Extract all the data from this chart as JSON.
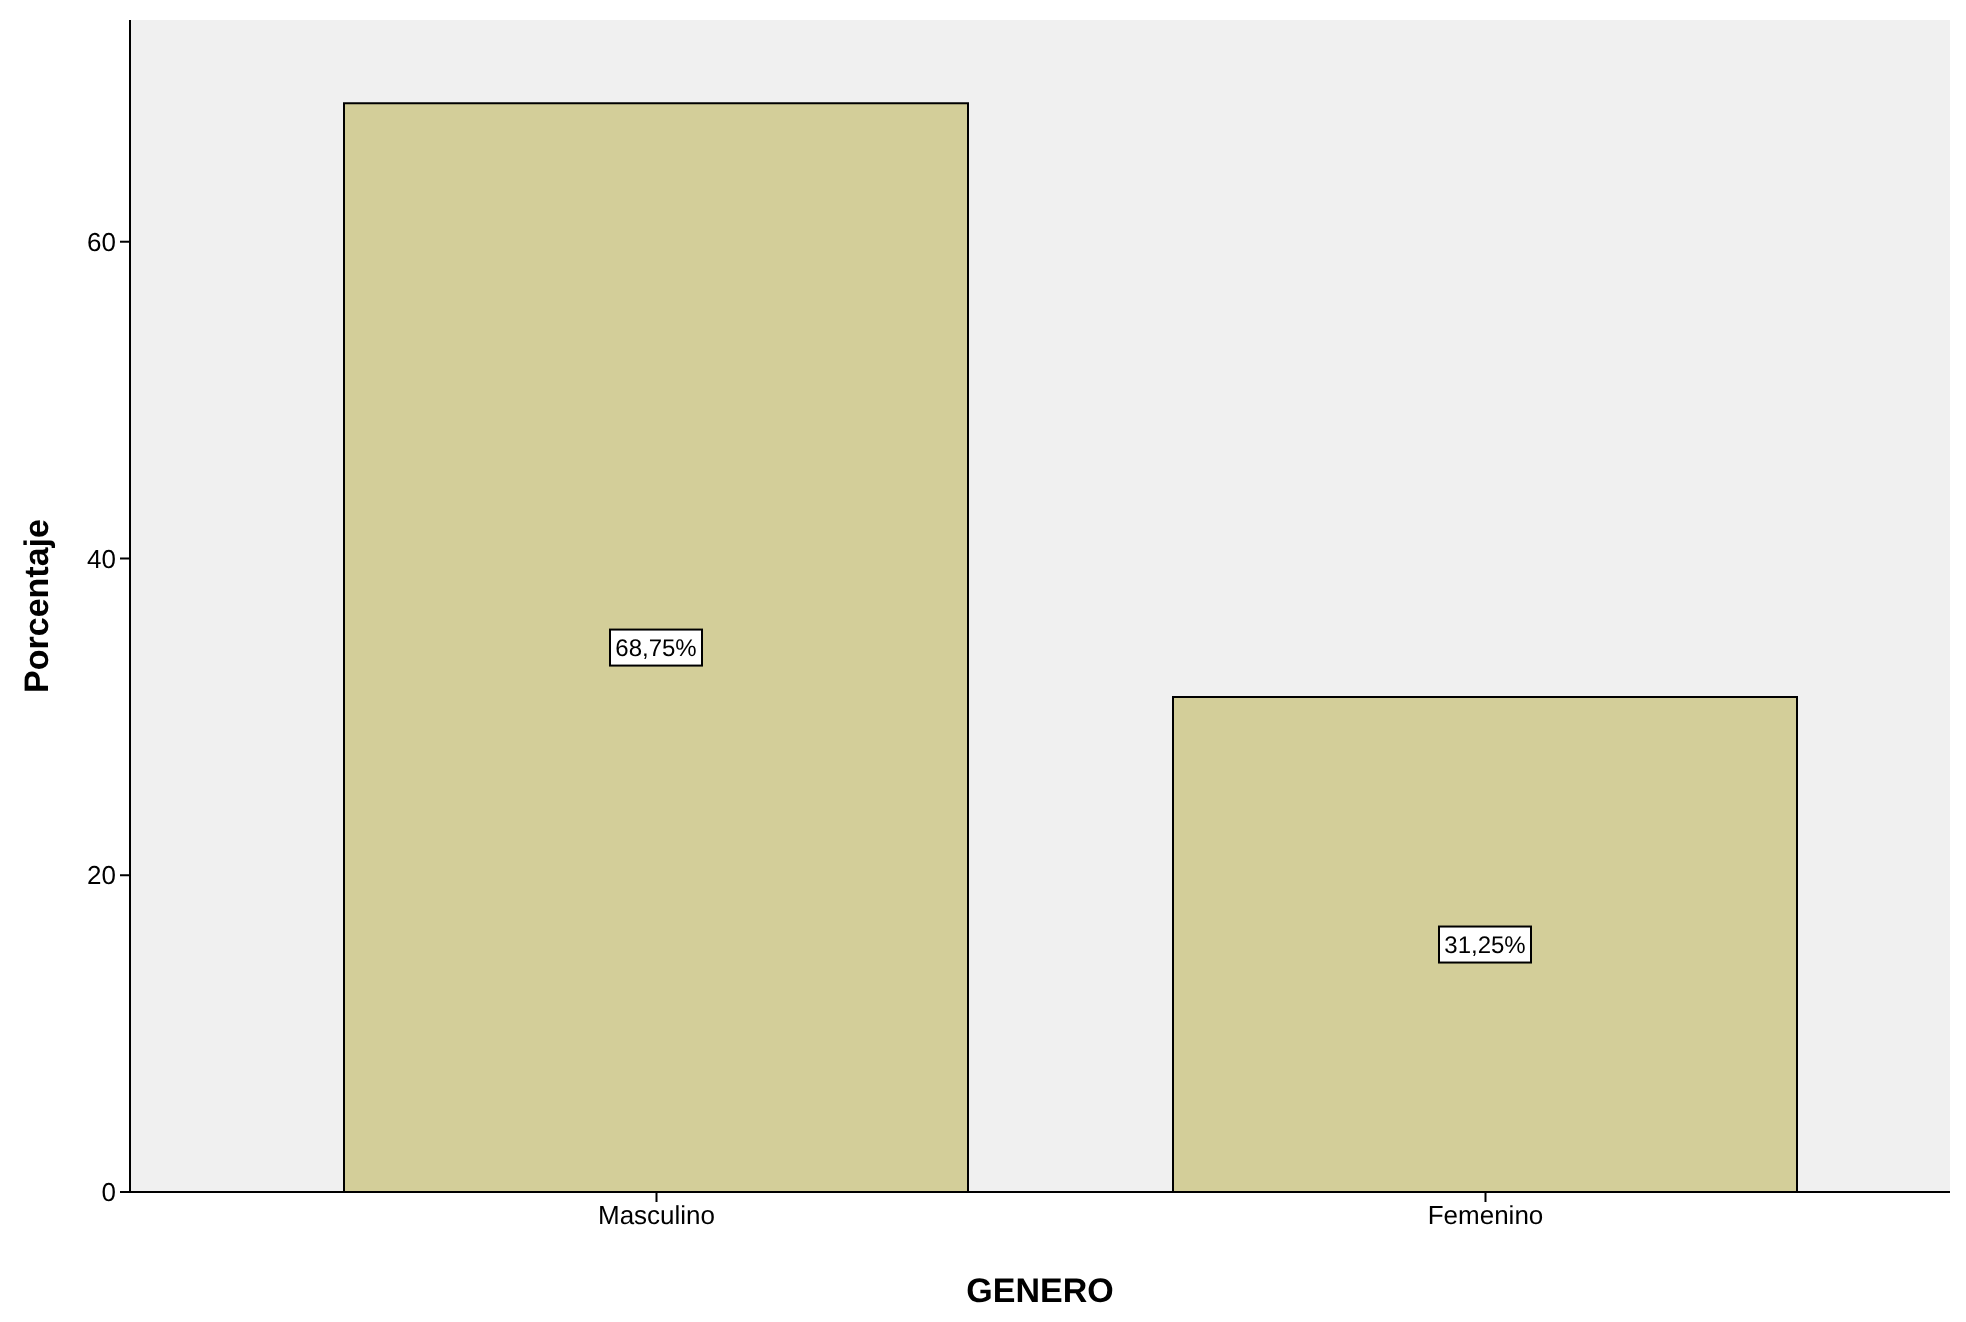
{
  "chart_data": {
    "type": "bar",
    "xlabel": "GENERO",
    "ylabel": "Porcentaje",
    "categories": [
      "Masculino",
      "Femenino"
    ],
    "values": [
      68.75,
      31.25
    ],
    "value_labels": [
      "68,75%",
      "31,25%"
    ],
    "color": "#d3ce99",
    "ylim": [
      0,
      74
    ],
    "yticks": [
      0,
      20,
      40,
      60
    ]
  }
}
